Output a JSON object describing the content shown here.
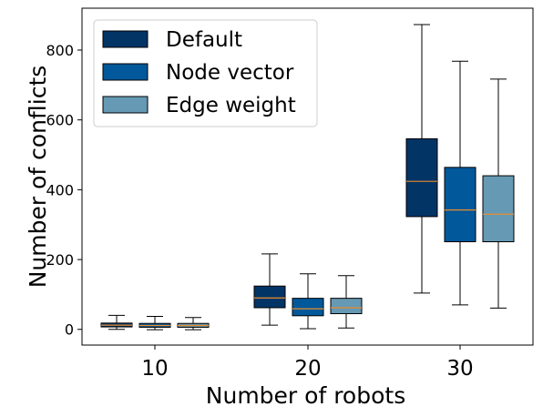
{
  "chart_data": {
    "type": "box",
    "title": "",
    "xlabel": "Number of robots",
    "ylabel": "Number of conflicts",
    "categories": [
      "10",
      "20",
      "30"
    ],
    "ylim": [
      -45,
      920
    ],
    "yticks": [
      0,
      200,
      400,
      600,
      800
    ],
    "grid": false,
    "legend_position": "top-left",
    "series": [
      {
        "name": "Default",
        "color": "#023466",
        "boxes": [
          {
            "whislo": 0,
            "q1": 7,
            "med": 12,
            "q3": 18,
            "whishi": 40
          },
          {
            "whislo": 12,
            "q1": 62,
            "med": 90,
            "q3": 124,
            "whishi": 216
          },
          {
            "whislo": 104,
            "q1": 323,
            "med": 424,
            "q3": 546,
            "whishi": 873
          }
        ]
      },
      {
        "name": "Node vector",
        "color": "#01589A",
        "boxes": [
          {
            "whislo": -1,
            "q1": 6,
            "med": 11,
            "q3": 17,
            "whishi": 37
          },
          {
            "whislo": 2,
            "q1": 39,
            "med": 59,
            "q3": 89,
            "whishi": 159
          },
          {
            "whislo": 70,
            "q1": 251,
            "med": 342,
            "q3": 464,
            "whishi": 768
          }
        ]
      },
      {
        "name": "Edge weight",
        "color": "#6699B3",
        "boxes": [
          {
            "whislo": -1,
            "q1": 6,
            "med": 11,
            "q3": 17,
            "whishi": 34
          },
          {
            "whislo": 4,
            "q1": 45,
            "med": 62,
            "q3": 89,
            "whishi": 154
          },
          {
            "whislo": 61,
            "q1": 251,
            "med": 330,
            "q3": 440,
            "whishi": 717
          }
        ]
      }
    ],
    "median_color": "#E98C2C"
  }
}
